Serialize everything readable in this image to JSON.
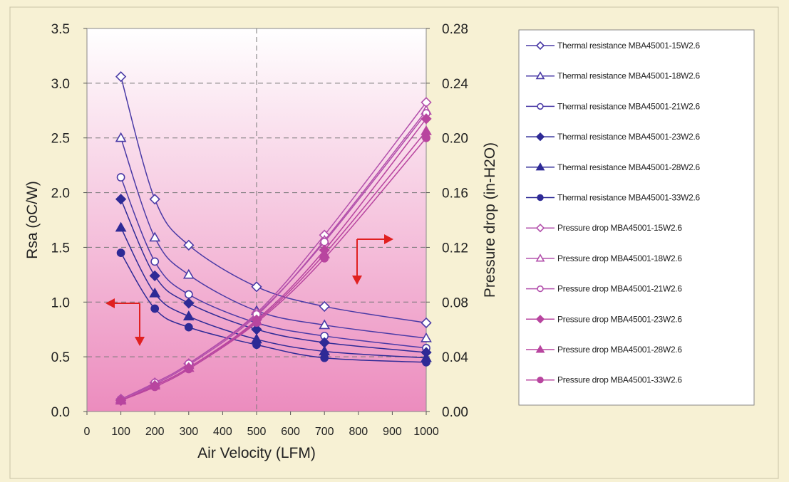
{
  "chart_data": {
    "type": "line",
    "xlabel": "Air Velocity (LFM)",
    "ylabel": "Rsa (oC/W)",
    "y2label": "Pressure drop (in-H2O)",
    "xlim": [
      0,
      1000
    ],
    "ylim": [
      0,
      3.5
    ],
    "y2lim": [
      0,
      0.28
    ],
    "xticks": [
      "0",
      "100",
      "200",
      "300",
      "400",
      "500",
      "600",
      "700",
      "800",
      "900",
      "1000"
    ],
    "yticks": [
      "0.0",
      "0.5",
      "1.0",
      "1.5",
      "2.0",
      "2.5",
      "3.0",
      "3.5"
    ],
    "y2ticks": [
      "0.00",
      "0.04",
      "0.08",
      "0.12",
      "0.16",
      "0.20",
      "0.24",
      "0.28"
    ],
    "grid": "dashed",
    "legend_position": "right",
    "x": [
      100,
      200,
      300,
      500,
      700,
      1000
    ],
    "series": [
      {
        "name": "Thermal resistance MBA45001-15W2.6",
        "axis": "left",
        "marker": "diamond-open",
        "color": "#4a3aa6",
        "values": [
          3.06,
          1.94,
          1.52,
          1.14,
          0.96,
          0.81
        ]
      },
      {
        "name": "Thermal resistance MBA45001-18W2.6",
        "axis": "left",
        "marker": "triangle-open",
        "color": "#4a3aa6",
        "values": [
          2.5,
          1.59,
          1.25,
          0.92,
          0.79,
          0.67
        ]
      },
      {
        "name": "Thermal resistance MBA45001-21W2.6",
        "axis": "left",
        "marker": "circle-open",
        "color": "#4a3aa6",
        "values": [
          2.14,
          1.37,
          1.07,
          0.81,
          0.69,
          0.58
        ]
      },
      {
        "name": "Thermal resistance MBA45001-23W2.6",
        "axis": "left",
        "marker": "diamond-filled",
        "color": "#2e2a96",
        "values": [
          1.94,
          1.24,
          0.99,
          0.75,
          0.63,
          0.54
        ]
      },
      {
        "name": "Thermal resistance MBA45001-28W2.6",
        "axis": "left",
        "marker": "triangle-filled",
        "color": "#2e2a96",
        "values": [
          1.68,
          1.08,
          0.87,
          0.66,
          0.55,
          0.49
        ]
      },
      {
        "name": "Thermal resistance MBA45001-33W2.6",
        "axis": "left",
        "marker": "circle-filled",
        "color": "#2e2a96",
        "values": [
          1.45,
          0.94,
          0.77,
          0.61,
          0.49,
          0.45
        ]
      },
      {
        "name": "Pressure drop MBA45001-15W2.6",
        "axis": "right",
        "marker": "diamond-open",
        "color": "#b24fab",
        "values": [
          0.009,
          0.021,
          0.035,
          0.072,
          0.129,
          0.226
        ]
      },
      {
        "name": "Pressure drop MBA45001-18W2.6",
        "axis": "right",
        "marker": "triangle-open",
        "color": "#b24fab",
        "values": [
          0.009,
          0.02,
          0.034,
          0.07,
          0.125,
          0.22
        ]
      },
      {
        "name": "Pressure drop MBA45001-21W2.6",
        "axis": "right",
        "marker": "circle-open",
        "color": "#b24fab",
        "values": [
          0.009,
          0.021,
          0.035,
          0.071,
          0.124,
          0.218
        ]
      },
      {
        "name": "Pressure drop MBA45001-23W2.6",
        "axis": "right",
        "marker": "diamond-filled",
        "color": "#b8459f",
        "values": [
          0.008,
          0.019,
          0.032,
          0.067,
          0.118,
          0.214
        ]
      },
      {
        "name": "Pressure drop MBA45001-28W2.6",
        "axis": "right",
        "marker": "triangle-filled",
        "color": "#b8459f",
        "values": [
          0.008,
          0.019,
          0.032,
          0.066,
          0.115,
          0.205
        ]
      },
      {
        "name": "Pressure drop MBA45001-33W2.6",
        "axis": "right",
        "marker": "circle-filled",
        "color": "#b8459f",
        "values": [
          0.008,
          0.018,
          0.031,
          0.065,
          0.112,
          0.2
        ]
      }
    ],
    "annotations": [
      {
        "type": "arrow",
        "points_to": "left axis",
        "color": "#e02020"
      },
      {
        "type": "arrow",
        "points_to": "right axis",
        "color": "#e02020"
      }
    ],
    "colors": {
      "plot_top": "#ffffff",
      "plot_bottom": "#ec8cbe",
      "background": "#f7f1d4",
      "arrow": "#e02020"
    }
  }
}
